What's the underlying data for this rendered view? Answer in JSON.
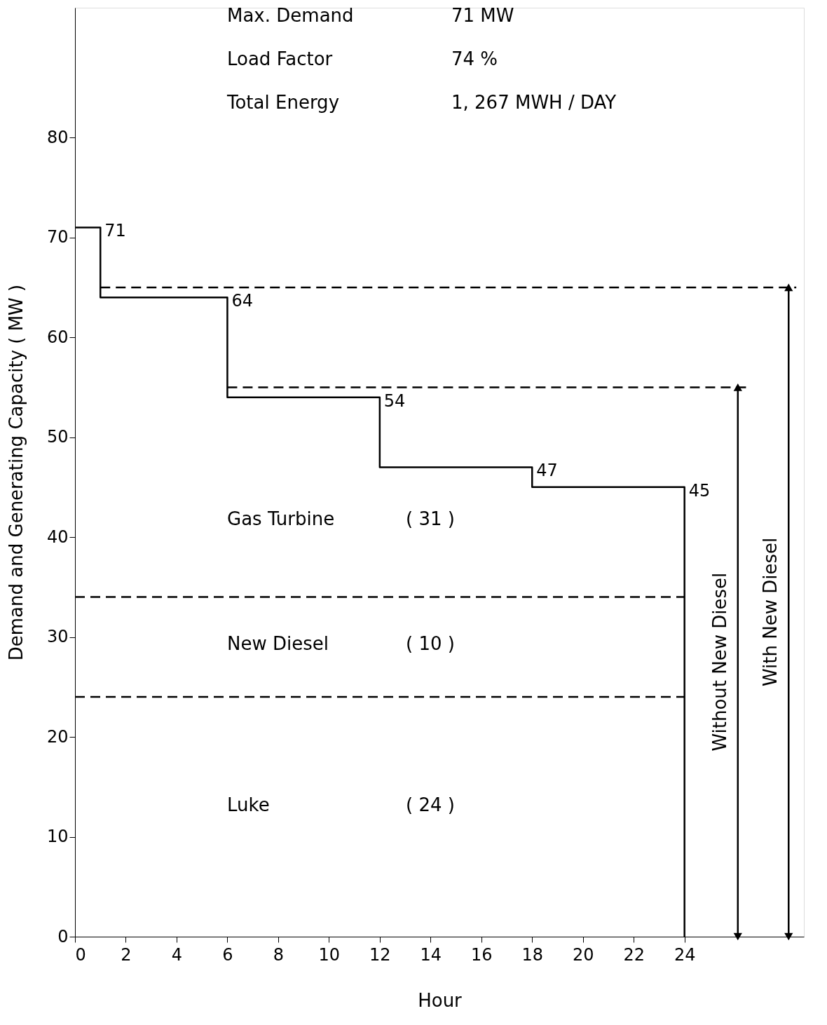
{
  "chart_data": {
    "type": "line",
    "xlabel": "Hour",
    "ylabel": "Demand and Generating Capacity ( MW )",
    "xlim": [
      0,
      28.7
    ],
    "ylim": [
      0,
      93
    ],
    "xticks": [
      0,
      2,
      4,
      6,
      8,
      10,
      12,
      14,
      16,
      18,
      20,
      22,
      24
    ],
    "yticks": [
      0,
      10,
      20,
      30,
      40,
      50,
      60,
      70,
      80
    ],
    "grid": false,
    "marker": "none",
    "line_style": "solid",
    "annotations": [
      "Max. Demand",
      "71 MW",
      "Load Factor",
      "74 %",
      "Total Energy",
      "1, 267 MWH / DAY",
      "Gas Turbine",
      "( 31 )",
      "New Diesel",
      "( 10 )",
      "Luke",
      "( 24 )"
    ],
    "series": [
      {
        "color": "#000000",
        "x": [
          0,
          1,
          1,
          6,
          6,
          12,
          12,
          18,
          18,
          24,
          24
        ],
        "values": [
          71,
          71,
          64,
          64,
          54,
          54,
          47,
          47,
          45,
          45,
          0
        ],
        "value_labels": [
          null,
          "71",
          null,
          "64",
          null,
          "54",
          null,
          "47",
          null,
          "45",
          null
        ]
      },
      {
        "color": "#000000",
        "line_style": "dashed",
        "x": [
          1,
          28.4
        ],
        "values": [
          65,
          65
        ]
      },
      {
        "color": "#000000",
        "line_style": "dashed",
        "x": [
          6,
          26.6
        ],
        "values": [
          55,
          55
        ]
      },
      {
        "color": "#000000",
        "line_style": "dashed",
        "x": [
          0,
          24
        ],
        "values": [
          34,
          34
        ]
      },
      {
        "color": "#000000",
        "line_style": "dashed",
        "x": [
          0,
          24
        ],
        "values": [
          24,
          24
        ]
      },
      {
        "name": "Without New Diesel",
        "color": "#000000",
        "marker": "triangle",
        "x": [
          26.1,
          26.1
        ],
        "values": [
          0,
          55
        ]
      },
      {
        "name": "With New Diesel",
        "color": "#000000",
        "marker": "triangle",
        "x": [
          28.1,
          28.1
        ],
        "values": [
          0,
          65
        ]
      }
    ]
  }
}
